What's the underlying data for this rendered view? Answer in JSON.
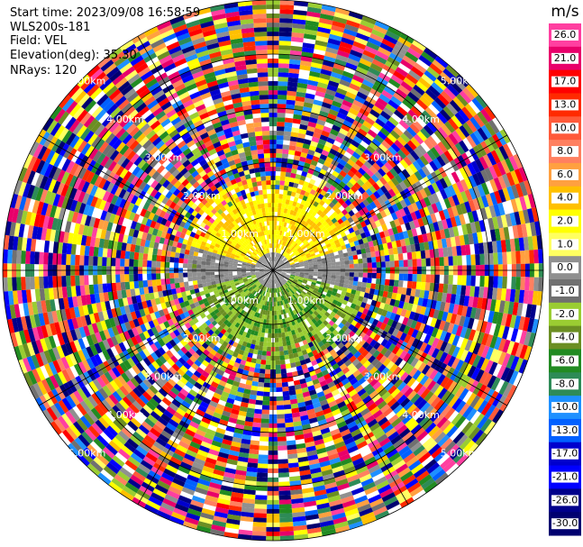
{
  "info": {
    "start_time": "Start time: 2023/09/08 16:58:59",
    "instrument": "WLS200s-181",
    "field": "Field: VEL",
    "elevation": "Elevation(deg): 35.30",
    "nrays": "NRays: 120"
  },
  "colorbar": {
    "unit": "m/s",
    "ticks": [
      "26.0",
      "21.0",
      "17.0",
      "13.0",
      "10.0",
      "8.0",
      "6.0",
      "4.0",
      "2.0",
      "1.0",
      "0.0",
      "-1.0",
      "-2.0",
      "-4.0",
      "-6.0",
      "-8.0",
      "-10.0",
      "-13.0",
      "-17.0",
      "-21.0",
      "-26.0",
      "-30.0"
    ],
    "colors": [
      "#ff3fa0",
      "#e8006a",
      "#ff0000",
      "#ff2a00",
      "#ff5a3a",
      "#ff8060",
      "#ffa040",
      "#ffc000",
      "#ffff00",
      "#ffff60",
      "#909090",
      "#707070",
      "#9acd32",
      "#6b8e23",
      "#228b22",
      "#2e8b57",
      "#1e90ff",
      "#0060ff",
      "#0000cd",
      "#0000ff",
      "#00008b",
      "#000070"
    ]
  },
  "chart_data": {
    "type": "heatmap",
    "variant": "radar PPI (plan position indicator)",
    "field": "VEL",
    "units": "m/s",
    "value_range": [
      -30.0,
      26.0
    ],
    "range_ring_labels": [
      "1.00km",
      "2.00km",
      "3.00km",
      "4.00km",
      "5.00km"
    ],
    "range_rings_km": [
      1,
      2,
      3,
      4,
      5
    ],
    "azimuth_spokes_deg": [
      0,
      30,
      60,
      90,
      120,
      150,
      180,
      210,
      240,
      270,
      300,
      330
    ],
    "nrays": 120,
    "elevation_deg": 35.3,
    "description_values": {
      "inner_north_band": "yellow (~2 to 4 m/s)",
      "inner_south_band": "green (~-2 to -6 m/s)",
      "center": "gray (~0 m/s)",
      "outer_region": "noisy mixed values spanning full scale"
    }
  }
}
